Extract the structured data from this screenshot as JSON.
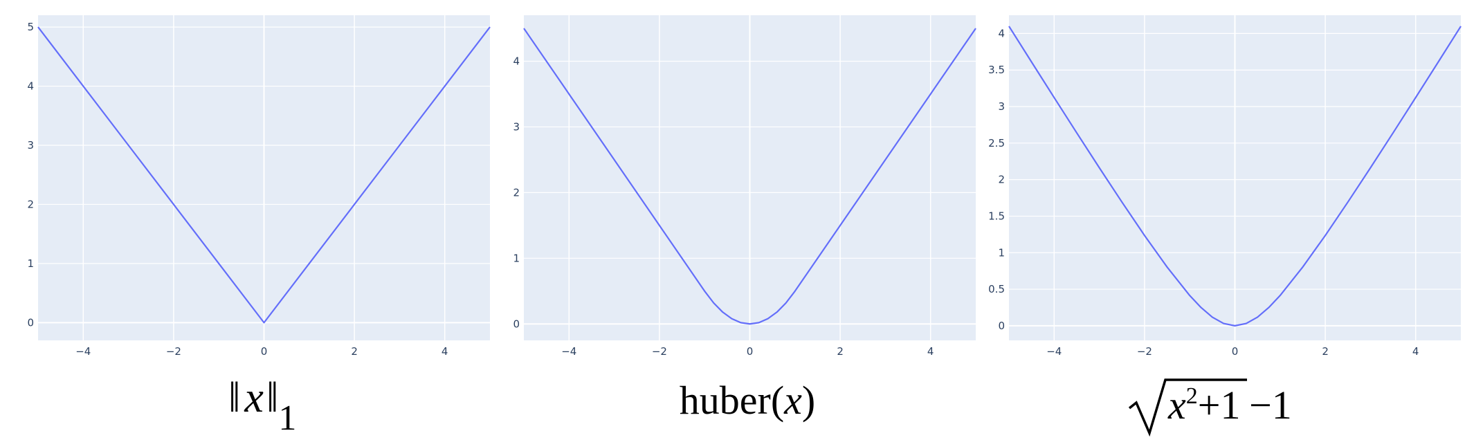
{
  "colors": {
    "plot_background": "#e5ecf6",
    "grid": "#ffffff",
    "line": "#636efa",
    "tick_text": "#2a3f5f",
    "caption_text": "#000000"
  },
  "chart_data": [
    {
      "type": "line",
      "caption": "‖x‖₁",
      "x": [
        -5,
        -4,
        -3,
        -2,
        -1,
        0,
        1,
        2,
        3,
        4,
        5
      ],
      "series": [
        {
          "values": [
            5,
            4,
            3,
            2,
            1,
            0,
            1,
            2,
            3,
            4,
            5
          ]
        }
      ],
      "xlim": [
        -5,
        5
      ],
      "ylim": [
        -0.3,
        5.2
      ],
      "xticks": [
        -4,
        -2,
        0,
        2,
        4
      ],
      "xtick_labels": [
        "−4",
        "−2",
        "0",
        "2",
        "4"
      ],
      "yticks": [
        0,
        1,
        2,
        3,
        4,
        5
      ],
      "ytick_labels": [
        "0",
        "1",
        "2",
        "3",
        "4",
        "5"
      ],
      "grid": true,
      "legend": false
    },
    {
      "type": "line",
      "caption": "huber(x)",
      "x": [
        -5,
        -4,
        -3,
        -2,
        -1,
        -0.8,
        -0.6,
        -0.4,
        -0.2,
        0,
        0.2,
        0.4,
        0.6,
        0.8,
        1,
        2,
        3,
        4,
        5
      ],
      "series": [
        {
          "values": [
            4.5,
            3.5,
            2.5,
            1.5,
            0.5,
            0.32,
            0.18,
            0.08,
            0.02,
            0,
            0.02,
            0.08,
            0.18,
            0.32,
            0.5,
            1.5,
            2.5,
            3.5,
            4.5
          ]
        }
      ],
      "xlim": [
        -5,
        5
      ],
      "ylim": [
        -0.25,
        4.7
      ],
      "xticks": [
        -4,
        -2,
        0,
        2,
        4
      ],
      "xtick_labels": [
        "−4",
        "−2",
        "0",
        "2",
        "4"
      ],
      "yticks": [
        0,
        1,
        2,
        3,
        4
      ],
      "ytick_labels": [
        "0",
        "1",
        "2",
        "3",
        "4"
      ],
      "grid": true,
      "legend": false
    },
    {
      "type": "line",
      "caption": "√(x²+1) − 1",
      "x": [
        -5,
        -4.5,
        -4,
        -3.5,
        -3,
        -2.5,
        -2,
        -1.5,
        -1,
        -0.75,
        -0.5,
        -0.25,
        0,
        0.25,
        0.5,
        0.75,
        1,
        1.5,
        2,
        2.5,
        3,
        3.5,
        4,
        4.5,
        5
      ],
      "series": [
        {
          "values": [
            4.099,
            3.61,
            3.123,
            2.64,
            2.162,
            1.693,
            1.236,
            0.803,
            0.414,
            0.25,
            0.118,
            0.031,
            0,
            0.031,
            0.118,
            0.25,
            0.414,
            0.803,
            1.236,
            1.693,
            2.162,
            2.64,
            3.123,
            3.61,
            4.099
          ]
        }
      ],
      "xlim": [
        -5,
        5
      ],
      "ylim": [
        -0.2,
        4.25
      ],
      "xticks": [
        -4,
        -2,
        0,
        2,
        4
      ],
      "xtick_labels": [
        "−4",
        "−2",
        "0",
        "2",
        "4"
      ],
      "yticks": [
        0,
        0.5,
        1,
        1.5,
        2,
        2.5,
        3,
        3.5,
        4
      ],
      "ytick_labels": [
        "0",
        "0.5",
        "1",
        "1.5",
        "2",
        "2.5",
        "3",
        "3.5",
        "4"
      ],
      "grid": true,
      "legend": false
    }
  ]
}
